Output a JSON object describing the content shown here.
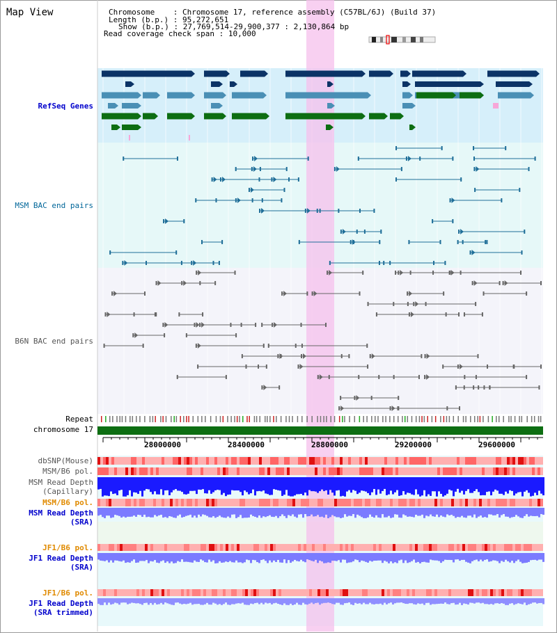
{
  "title": "Map View",
  "info": {
    "chromosome_label": "Chromosome",
    "chromosome_value": "Chromosome 17, reference assembly (C57BL/6J) (Build 37)",
    "length_label": "Length (b.p.)",
    "length_value": "95,272,651",
    "show_label": "Show (b.p.)",
    "show_value": "27,769,514-29,900,377 : 2,130,864 bp",
    "coverage_label": "Read coverage check span",
    "coverage_value": "10,000"
  },
  "tracks": {
    "refseq": "RefSeq Genes",
    "msm_bac": "MSM BAC end pairs",
    "b6n_bac": "B6N BAC end pairs",
    "repeat": "Repeat",
    "chromosome": "chromosome 17",
    "dbsnp": "dbSNP(Mouse)",
    "msm_b6_pol_1": "MSM/B6 pol.",
    "msm_read_depth_cap_1": "MSM Read Depth",
    "msm_read_depth_cap_2": "(Capillary)",
    "msm_b6_pol_2": "MSM/B6 pol.",
    "msm_read_depth_sra_1": "MSM Read Depth",
    "msm_read_depth_sra_2": "(SRA)",
    "jf1_b6_pol_1": "JF1/B6 pol.",
    "jf1_read_depth_sra_1": "JF1 Read Depth",
    "jf1_read_depth_sra_2": "(SRA)",
    "jf1_b6_pol_2": "JF1/B6 pol.",
    "jf1_read_depth_trim_1": "JF1 Read Depth",
    "jf1_read_depth_trim_2": "(SRA trimmed)"
  },
  "ruler": {
    "ticks": [
      "28000000",
      "28400000",
      "28800000",
      "29200000",
      "29600000"
    ]
  },
  "colors": {
    "highlight": "#f5c0ec",
    "refseq_bg": "#d6effa",
    "bac_bg": "#e6f8f8",
    "b6n_bg": "#f4f4fa",
    "dark_blue": "#0b3366",
    "mid_blue": "#4a8fb5",
    "green": "#0d6e12",
    "depth_blue": "#1a1aff",
    "depth_lav": "#7b7bff",
    "snp_red": "#ff6666"
  }
}
